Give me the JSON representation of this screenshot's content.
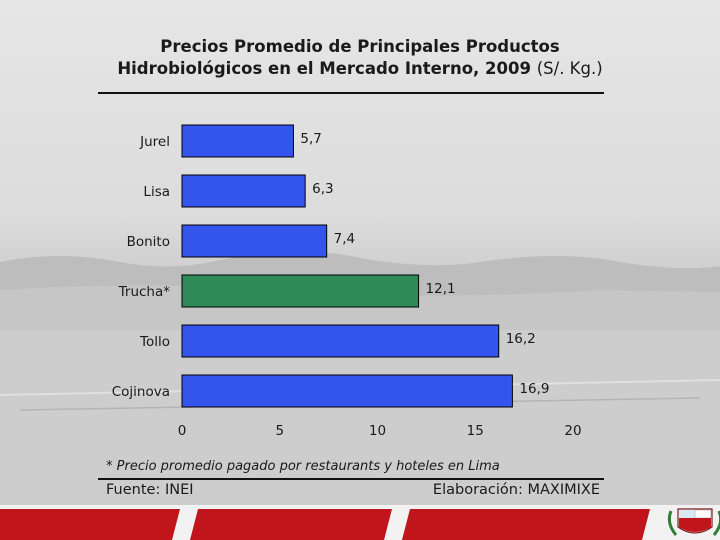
{
  "title": {
    "line1": "Precios Promedio de Principales Productos",
    "line2": "Hidrobiológicos en el Mercado Interno, 2009",
    "unit": "(S/. Kg.)"
  },
  "footnote": "* Precio promedio pagado por restaurants y hoteles en Lima",
  "source": "Fuente: INEI",
  "credit": "Elaboración: MAXIMIXE",
  "colors": {
    "bar_default": "#3355ee",
    "bar_highlight": "#2e8b57",
    "bar_stroke": "#000000",
    "bottom_red": "#c0151b"
  },
  "emblem": "peru-coat-of-arms-icon",
  "chart_data": {
    "type": "bar",
    "orientation": "horizontal",
    "categories": [
      "Jurel",
      "Lisa",
      "Bonito",
      "Trucha*",
      "Tollo",
      "Cojinova"
    ],
    "values": [
      5.7,
      6.3,
      7.4,
      12.1,
      16.2,
      16.9
    ],
    "value_labels": [
      "5,7",
      "6,3",
      "7,4",
      "12,1",
      "16,2",
      "16,9"
    ],
    "highlight_category": "Trucha*",
    "xlim": [
      0,
      20
    ],
    "xticks": [
      0,
      5,
      10,
      15,
      20
    ],
    "xtick_labels": [
      "0",
      "5",
      "10",
      "15",
      "20"
    ],
    "grid": false,
    "legend": "none"
  }
}
